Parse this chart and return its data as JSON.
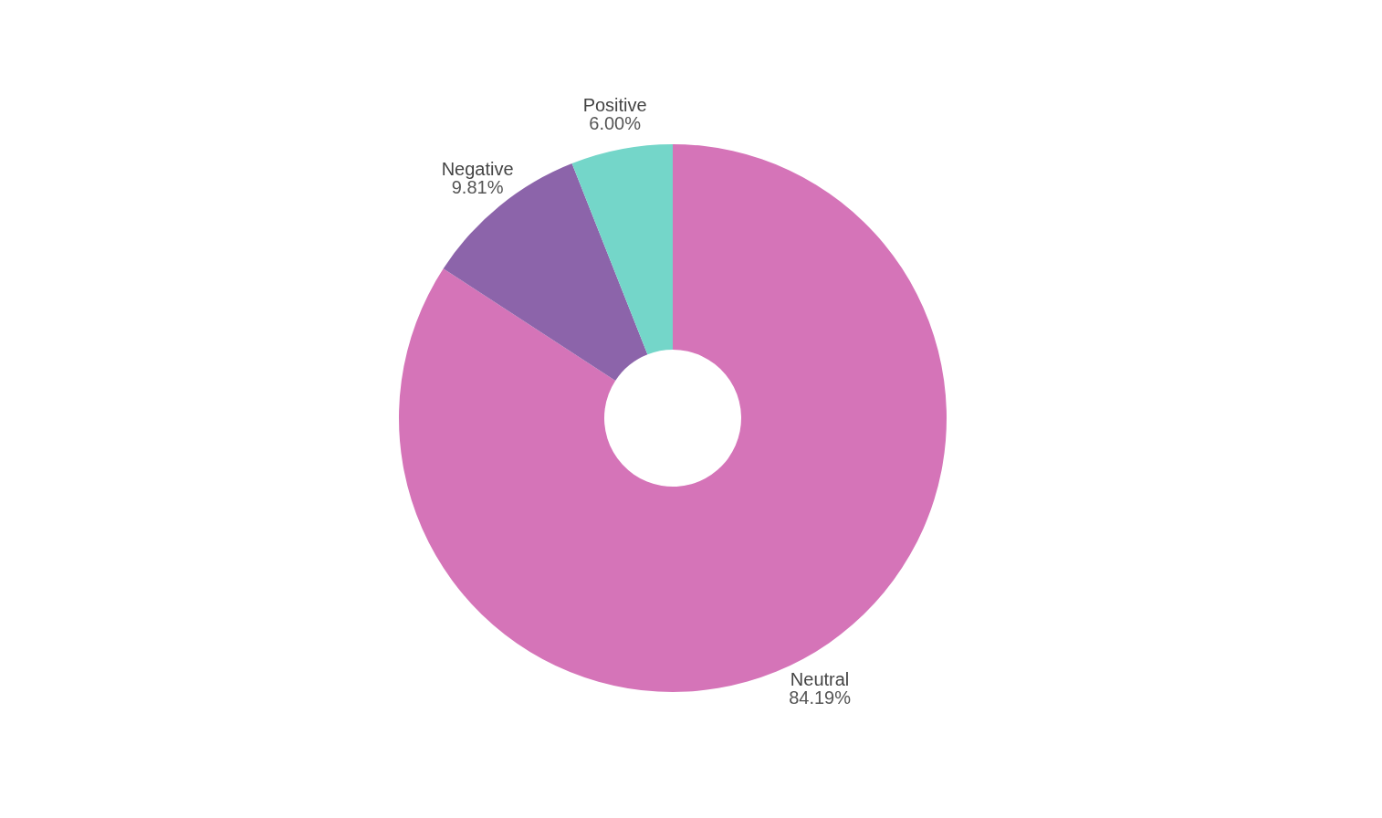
{
  "chart_data": {
    "type": "donut",
    "categories": [
      "Neutral",
      "Negative",
      "Positive"
    ],
    "values": [
      84.19,
      9.81,
      6.0
    ],
    "colors": [
      "#d574b8",
      "#8c64aa",
      "#74d6c9"
    ],
    "value_labels": [
      "84.19%",
      "9.81%",
      "6.00%"
    ],
    "legend": false
  }
}
